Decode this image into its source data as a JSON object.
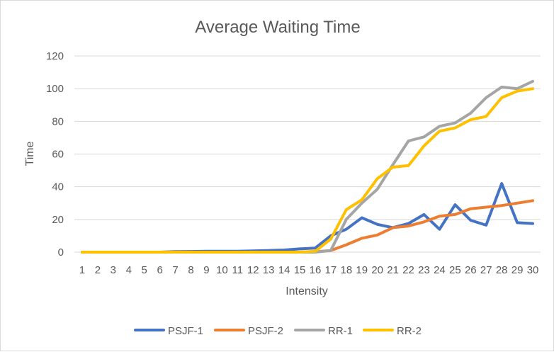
{
  "chart_data": {
    "type": "line",
    "title": "Average Waiting Time",
    "xlabel": "Intensity",
    "ylabel": "Time",
    "ylim": [
      0,
      120
    ],
    "yticks": [
      0,
      20,
      40,
      60,
      80,
      100,
      120
    ],
    "grid": true,
    "legend_position": "bottom",
    "categories": [
      "1",
      "2",
      "3",
      "4",
      "5",
      "6",
      "7",
      "8",
      "9",
      "10",
      "11",
      "12",
      "13",
      "14",
      "15",
      "16",
      "17",
      "18",
      "19",
      "20",
      "21",
      "22",
      "23",
      "24",
      "25",
      "26",
      "27",
      "28",
      "29",
      "30"
    ],
    "series": [
      {
        "name": "PSJF-1",
        "color": "#4472C4",
        "values": [
          0,
          0,
          0,
          0,
          0,
          0,
          0.3,
          0.4,
          0.5,
          0.5,
          0.5,
          0.8,
          1.0,
          1.3,
          2.0,
          2.5,
          10,
          14,
          21,
          17,
          15,
          17.5,
          23,
          14,
          29,
          19.5,
          16.5,
          42,
          18,
          17.5
        ]
      },
      {
        "name": "PSJF-2",
        "color": "#ED7D31",
        "values": [
          0,
          0,
          0,
          0,
          0,
          0,
          0,
          0,
          0,
          0,
          0,
          0,
          0,
          0,
          0,
          0.2,
          1,
          4.5,
          8.5,
          10.5,
          15,
          16,
          18.5,
          22,
          23,
          26.5,
          27.5,
          28.5,
          30,
          31.5
        ]
      },
      {
        "name": "RR-1",
        "color": "#A5A5A5",
        "values": [
          0,
          0,
          0,
          0,
          0,
          0,
          0,
          0,
          0,
          0,
          0,
          0,
          0,
          0,
          0,
          0,
          1,
          20,
          30,
          38.5,
          53.5,
          68,
          70.5,
          77,
          79,
          85,
          94.5,
          101,
          100,
          104.5
        ]
      },
      {
        "name": "RR-2",
        "color": "#FFC000",
        "values": [
          0,
          0,
          0,
          0,
          0,
          0,
          0,
          0,
          0,
          0,
          0,
          0,
          0,
          0,
          0,
          0.5,
          8,
          26,
          32,
          45,
          52,
          53,
          65,
          74,
          76,
          81,
          83,
          94.5,
          98.5,
          100
        ]
      }
    ]
  }
}
